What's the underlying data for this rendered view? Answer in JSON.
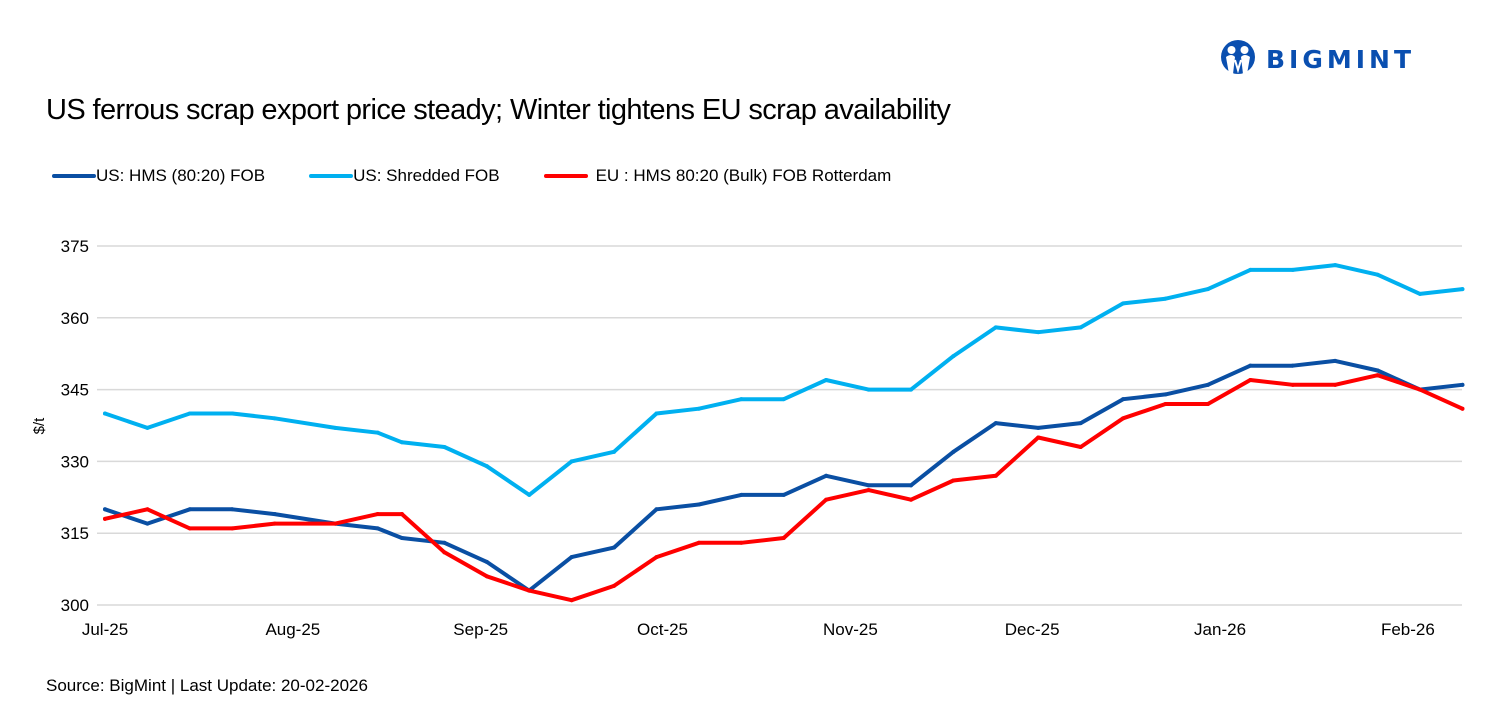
{
  "logo": {
    "text": "BIGMINT",
    "color": "#0a4fb0"
  },
  "title": "US ferrous scrap export price steady; Winter tightens EU scrap availability",
  "source": "Source: BigMint | Last Update: 20-02-2026",
  "chart_data": {
    "type": "line",
    "title": "US ferrous scrap export price steady; Winter tightens EU scrap availability",
    "xlabel": "",
    "ylabel": "$/t",
    "ylim": [
      300,
      375
    ],
    "yticks": [
      "300",
      "315",
      "330",
      "345",
      "360",
      "375"
    ],
    "xticks": [
      "Jul-25",
      "Aug-25",
      "Sep-25",
      "Oct-25",
      "Nov-25",
      "Dec-25",
      "Jan-26",
      "Feb-26"
    ],
    "xtick_dates": [
      "2025-07-01",
      "2025-08-01",
      "2025-09-01",
      "2025-10-01",
      "2025-11-01",
      "2025-12-01",
      "2026-01-01",
      "2026-02-01"
    ],
    "grid": "horizontal",
    "legend": "top-left",
    "x": [
      "2025-07-01",
      "2025-07-08",
      "2025-07-15",
      "2025-07-22",
      "2025-07-29",
      "2025-08-08",
      "2025-08-15",
      "2025-08-19",
      "2025-08-26",
      "2025-09-02",
      "2025-09-09",
      "2025-09-16",
      "2025-09-23",
      "2025-09-30",
      "2025-10-07",
      "2025-10-14",
      "2025-10-21",
      "2025-10-28",
      "2025-11-04",
      "2025-11-11",
      "2025-11-18",
      "2025-11-25",
      "2025-12-02",
      "2025-12-09",
      "2025-12-16",
      "2025-12-23",
      "2025-12-30",
      "2026-01-06",
      "2026-01-13",
      "2026-01-20",
      "2026-01-27",
      "2026-02-03",
      "2026-02-10"
    ],
    "series": [
      {
        "name": "US: HMS (80:20) FOB",
        "color": "#0a4fa3",
        "values": [
          320,
          317,
          320,
          320,
          319,
          317,
          316,
          314,
          313,
          309,
          303,
          310,
          312,
          320,
          321,
          323,
          323,
          327,
          325,
          325,
          332,
          338,
          337,
          338,
          343,
          344,
          346,
          350,
          350,
          351,
          349,
          345,
          346
        ]
      },
      {
        "name": "US: Shredded FOB",
        "color": "#00b0f0",
        "values": [
          340,
          337,
          340,
          340,
          339,
          337,
          336,
          334,
          333,
          329,
          323,
          330,
          332,
          340,
          341,
          343,
          343,
          347,
          345,
          345,
          352,
          358,
          357,
          358,
          363,
          364,
          366,
          370,
          370,
          371,
          369,
          365,
          366
        ]
      },
      {
        "name": "EU : HMS 80:20 (Bulk) FOB Rotterdam",
        "color": "#ff0000",
        "values": [
          318,
          320,
          316,
          316,
          317,
          317,
          319,
          319,
          311,
          306,
          303,
          301,
          304,
          310,
          313,
          313,
          314,
          322,
          324,
          322,
          326,
          327,
          335,
          333,
          339,
          342,
          342,
          347,
          346,
          346,
          348,
          345,
          341
        ]
      }
    ]
  }
}
